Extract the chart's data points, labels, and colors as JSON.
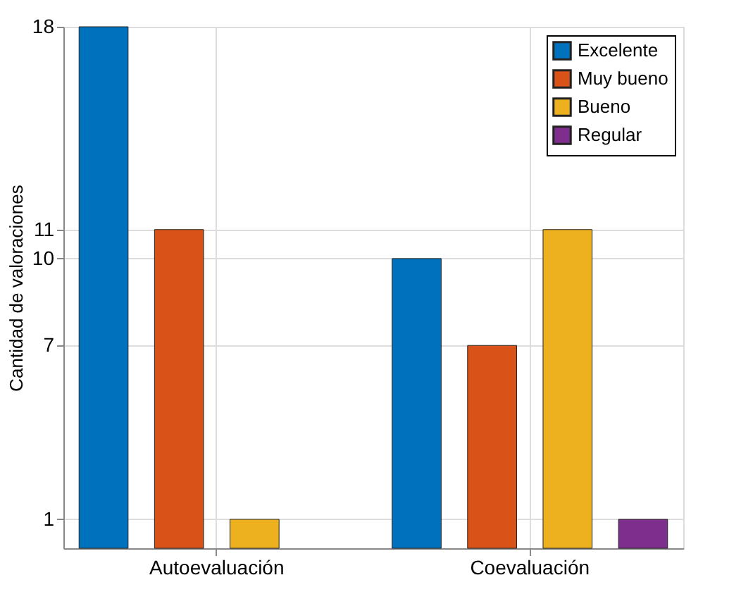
{
  "chart_data": {
    "type": "bar",
    "ylabel": "Cantidad de valoraciones",
    "categories": [
      "Autoevaluación",
      "Coevaluación"
    ],
    "series": [
      {
        "name": "Excelente",
        "color": "#0072bd",
        "values": [
          18,
          10
        ]
      },
      {
        "name": "Muy bueno",
        "color": "#d95319",
        "values": [
          11,
          7
        ]
      },
      {
        "name": "Bueno",
        "color": "#edb120",
        "values": [
          1,
          11
        ]
      },
      {
        "name": "Regular",
        "color": "#7e2f8e",
        "values": [
          null,
          1
        ]
      }
    ],
    "ylim": [
      0,
      18
    ],
    "yticks": [
      1,
      7,
      10,
      11,
      18
    ],
    "grid": true,
    "legend": "top right"
  }
}
